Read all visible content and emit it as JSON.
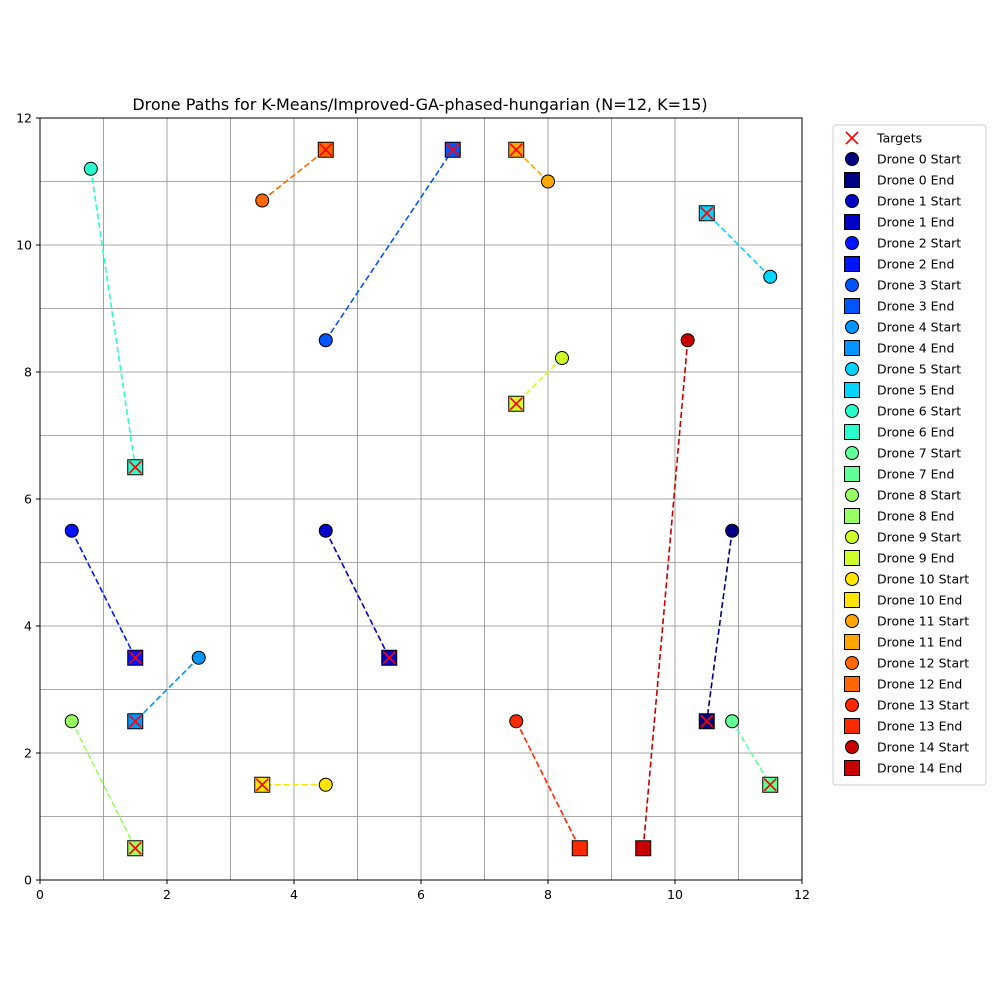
{
  "chart_data": {
    "type": "scatter",
    "title": "Drone Paths for K-Means/Improved-GA-phased-hungarian (N=12, K=15)",
    "xlabel": "",
    "ylabel": "",
    "xlim": [
      0,
      12
    ],
    "ylim": [
      0,
      12
    ],
    "xticks": [
      0,
      2,
      4,
      6,
      8,
      10,
      12
    ],
    "yticks": [
      0,
      2,
      4,
      6,
      8,
      10,
      12
    ],
    "grid": true,
    "legend_position": "outside-right",
    "targets_label": "Targets",
    "targets": [
      [
        10.5,
        2.5
      ],
      [
        1.5,
        3.5
      ],
      [
        6.5,
        11.5
      ],
      [
        1.5,
        2.5
      ],
      [
        10.5,
        10.5
      ],
      [
        1.5,
        6.5
      ],
      [
        11.5,
        1.5
      ],
      [
        1.5,
        0.5
      ],
      [
        7.5,
        7.5
      ],
      [
        3.5,
        1.5
      ],
      [
        7.5,
        11.5
      ],
      [
        4.5,
        11.5
      ],
      [
        5.5,
        3.5
      ]
    ],
    "drones": [
      {
        "id": 0,
        "start_label": "Drone 0 Start",
        "end_label": "Drone 0 End",
        "color": "#000080",
        "start": [
          10.9,
          5.5
        ],
        "end": [
          10.5,
          2.5
        ]
      },
      {
        "id": 1,
        "start_label": "Drone 1 Start",
        "end_label": "Drone 1 End",
        "color": "#0000c8",
        "start": [
          4.5,
          5.5
        ],
        "end": [
          5.5,
          3.5
        ]
      },
      {
        "id": 2,
        "start_label": "Drone 2 Start",
        "end_label": "Drone 2 End",
        "color": "#0014ff",
        "start": [
          0.5,
          5.5
        ],
        "end": [
          1.5,
          3.5
        ]
      },
      {
        "id": 3,
        "start_label": "Drone 3 Start",
        "end_label": "Drone 3 End",
        "color": "#0055ff",
        "start": [
          4.5,
          8.5
        ],
        "end": [
          6.5,
          11.5
        ]
      },
      {
        "id": 4,
        "start_label": "Drone 4 Start",
        "end_label": "Drone 4 End",
        "color": "#0095ff",
        "start": [
          2.5,
          3.5
        ],
        "end": [
          1.5,
          2.5
        ]
      },
      {
        "id": 5,
        "start_label": "Drone 5 Start",
        "end_label": "Drone 5 End",
        "color": "#00d5ff",
        "start": [
          11.5,
          9.5
        ],
        "end": [
          10.5,
          10.5
        ]
      },
      {
        "id": 6,
        "start_label": "Drone 6 Start",
        "end_label": "Drone 6 End",
        "color": "#29ffce",
        "start": [
          0.8,
          11.2
        ],
        "end": [
          1.5,
          6.5
        ]
      },
      {
        "id": 7,
        "start_label": "Drone 7 Start",
        "end_label": "Drone 7 End",
        "color": "#60ff97",
        "start": [
          10.9,
          2.5
        ],
        "end": [
          11.5,
          1.5
        ]
      },
      {
        "id": 8,
        "start_label": "Drone 8 Start",
        "end_label": "Drone 8 End",
        "color": "#97ff60",
        "start": [
          0.5,
          2.5
        ],
        "end": [
          1.5,
          0.5
        ]
      },
      {
        "id": 9,
        "start_label": "Drone 9 Start",
        "end_label": "Drone 9 End",
        "color": "#ceff29",
        "start": [
          8.22,
          8.22
        ],
        "end": [
          7.5,
          7.5
        ]
      },
      {
        "id": 10,
        "start_label": "Drone 10 Start",
        "end_label": "Drone 10 End",
        "color": "#ffe500",
        "start": [
          4.5,
          1.5
        ],
        "end": [
          3.5,
          1.5
        ]
      },
      {
        "id": 11,
        "start_label": "Drone 11 Start",
        "end_label": "Drone 11 End",
        "color": "#ffa600",
        "start": [
          8.0,
          11.0
        ],
        "end": [
          7.5,
          11.5
        ]
      },
      {
        "id": 12,
        "start_label": "Drone 12 Start",
        "end_label": "Drone 12 End",
        "color": "#ff6800",
        "start": [
          3.5,
          10.7
        ],
        "end": [
          4.5,
          11.5
        ]
      },
      {
        "id": 13,
        "start_label": "Drone 13 Start",
        "end_label": "Drone 13 End",
        "color": "#ff2900",
        "start": [
          7.5,
          2.5
        ],
        "end": [
          8.5,
          0.5
        ]
      },
      {
        "id": 14,
        "start_label": "Drone 14 Start",
        "end_label": "Drone 14 End",
        "color": "#c80000",
        "start": [
          10.2,
          8.5
        ],
        "end": [
          9.5,
          0.5
        ]
      }
    ]
  }
}
